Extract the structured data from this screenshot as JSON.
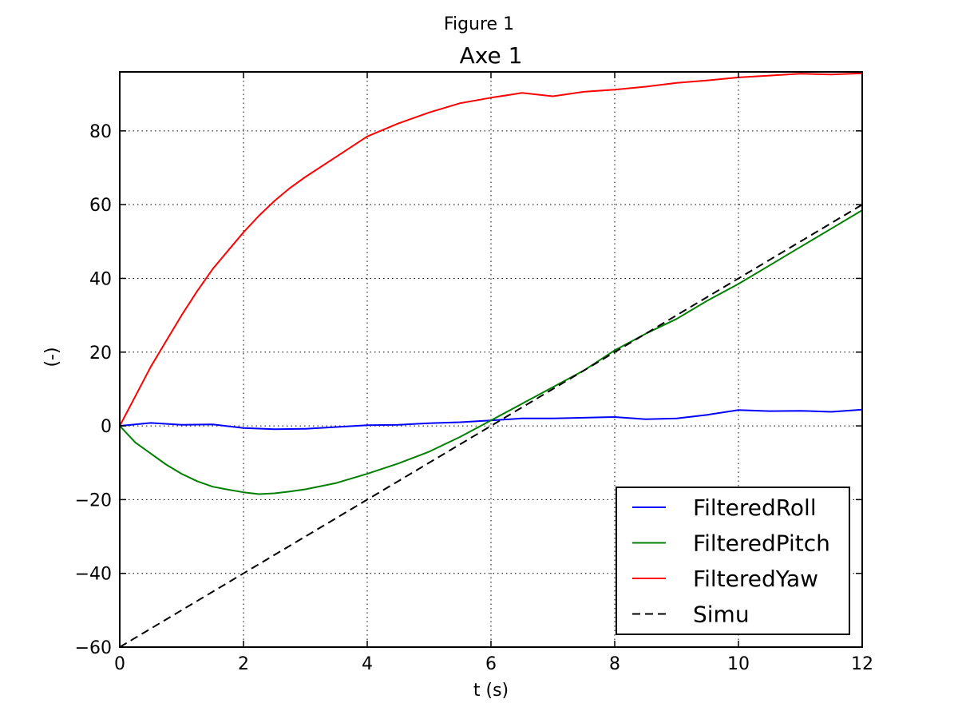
{
  "window": {
    "title": "Figure 1"
  },
  "chart_data": {
    "type": "line",
    "title": "Axe 1",
    "xlabel": "t (s)",
    "ylabel": "(-)",
    "xlim": [
      0,
      12
    ],
    "ylim": [
      -60,
      96
    ],
    "grid": true,
    "legend_position": "lower-right",
    "xticks": [
      0,
      2,
      4,
      6,
      8,
      10,
      12
    ],
    "xtick_labels": [
      "0",
      "2",
      "4",
      "6",
      "8",
      "10",
      "12"
    ],
    "yticks": [
      -60,
      -40,
      -20,
      0,
      20,
      40,
      60,
      80
    ],
    "ytick_labels": [
      "−60",
      "−40",
      "−20",
      "0",
      "20",
      "40",
      "60",
      "80"
    ],
    "series": [
      {
        "name": "FilteredRoll",
        "color": "#0000ff",
        "dash": "solid",
        "x": [
          0,
          0.5,
          1,
          1.5,
          2,
          2.5,
          3,
          3.5,
          4,
          4.5,
          5,
          5.5,
          6,
          6.5,
          7,
          7.5,
          8,
          8.5,
          9,
          9.5,
          10,
          10.5,
          11,
          11.5,
          12
        ],
        "y": [
          0,
          0.8,
          0.3,
          0.4,
          -0.6,
          -0.9,
          -0.8,
          -0.3,
          0.2,
          0.3,
          0.7,
          1.0,
          1.5,
          2.0,
          2.0,
          2.2,
          2.4,
          1.8,
          2.0,
          3.0,
          4.3,
          4.0,
          4.1,
          3.8,
          4.4
        ]
      },
      {
        "name": "FilteredPitch",
        "color": "#008000",
        "dash": "solid",
        "x": [
          0,
          0.25,
          0.5,
          0.75,
          1,
          1.25,
          1.5,
          1.75,
          2,
          2.25,
          2.5,
          2.75,
          3,
          3.5,
          4,
          4.5,
          5,
          5.5,
          6,
          6.5,
          7,
          7.5,
          8,
          8.5,
          9,
          9.5,
          10,
          10.5,
          11,
          11.5,
          12
        ],
        "y": [
          0,
          -4.5,
          -7.5,
          -10.5,
          -13,
          -15,
          -16.5,
          -17.3,
          -18,
          -18.5,
          -18.3,
          -17.8,
          -17.2,
          -15.5,
          -13,
          -10.2,
          -7,
          -3,
          1.5,
          6,
          10.5,
          15,
          20.5,
          25,
          29,
          34,
          38.5,
          43.5,
          48.5,
          53.5,
          58.5
        ]
      },
      {
        "name": "FilteredYaw",
        "color": "#ff0000",
        "dash": "solid",
        "x": [
          0,
          0.25,
          0.5,
          0.75,
          1,
          1.25,
          1.5,
          1.75,
          2,
          2.25,
          2.5,
          2.75,
          3,
          3.5,
          4,
          4.5,
          5,
          5.5,
          6,
          6.5,
          7,
          7.5,
          8,
          8.5,
          9,
          9.5,
          10,
          10.5,
          11,
          11.5,
          12
        ],
        "y": [
          0,
          8,
          16,
          23,
          30,
          36.5,
          42.5,
          47.5,
          52.5,
          57,
          61,
          64.5,
          67.5,
          73,
          78.5,
          82,
          85,
          87.5,
          89,
          90.3,
          89.4,
          90.6,
          91.2,
          92,
          93,
          93.7,
          94.5,
          95,
          95.5,
          95.3,
          95.6
        ]
      },
      {
        "name": "Simu",
        "color": "#000000",
        "dash": "dashed",
        "x": [
          0,
          12
        ],
        "y": [
          -60,
          60
        ]
      }
    ]
  }
}
